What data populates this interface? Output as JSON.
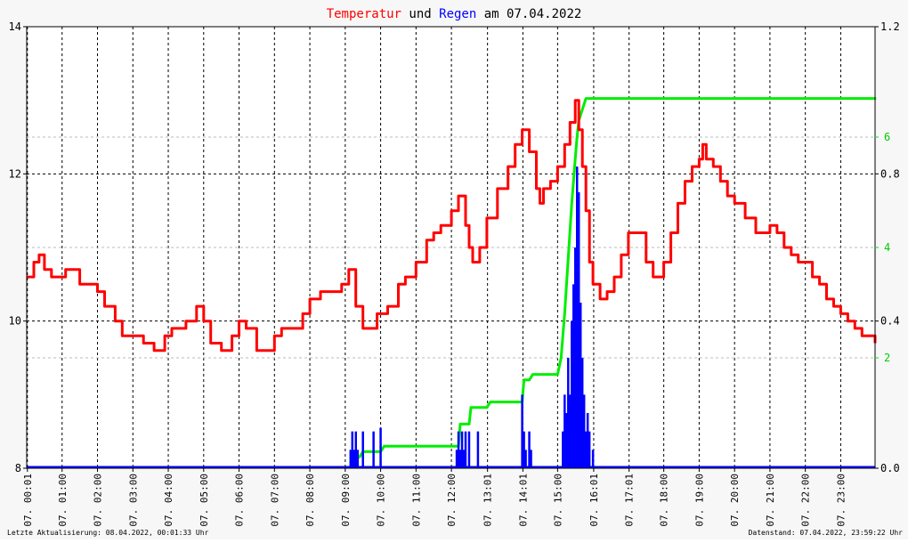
{
  "title": {
    "part1": "Temperatur",
    "part2": " und ",
    "part3": "Regen",
    "part4": " am 07.04.2022"
  },
  "colors": {
    "temp": "#ff0000",
    "rain": "#0000ff",
    "rain_sum": "#00ee00",
    "title_text": "#000000"
  },
  "footer": {
    "left": "Letzte Aktualisierung: 08.04.2022, 00:01:33 Uhr",
    "right": "Datenstand: 07.04.2022, 23:59:22 Uhr"
  },
  "chart_data": {
    "type": "line",
    "x_ticks": [
      "07. 00:01",
      "07. 01:00",
      "07. 02:00",
      "07. 03:00",
      "07. 04:00",
      "07. 05:00",
      "07. 06:00",
      "07. 07:00",
      "07. 08:00",
      "07. 09:00",
      "07. 10:00",
      "07. 11:00",
      "07. 12:00",
      "07. 13:01",
      "07. 14:01",
      "07. 15:00",
      "07. 16:01",
      "07. 17:01",
      "07. 18:00",
      "07. 19:00",
      "07. 20:00",
      "07. 21:00",
      "07. 22:00",
      "07. 23:00"
    ],
    "x_tick_hours": [
      0.02,
      1,
      2,
      3,
      4,
      5,
      6,
      7,
      8,
      9,
      10,
      11,
      12,
      13.02,
      14.02,
      15,
      16.02,
      17.02,
      18,
      19,
      20,
      21,
      22,
      23
    ],
    "xlim": [
      0,
      23.97
    ],
    "y_left": {
      "lim": [
        8,
        14
      ],
      "ticks": [
        "8",
        "10",
        "12",
        "14"
      ]
    },
    "y_right_rain": {
      "lim": [
        0,
        1.2
      ],
      "ticks": [
        "0.0",
        "0.4",
        "0.8",
        "1.2"
      ]
    },
    "y_right_sum": {
      "lim": [
        0,
        8
      ],
      "ticks": [
        "2",
        "4",
        "6"
      ]
    },
    "series": [
      {
        "name": "Temperatur",
        "axis": "left",
        "x": [
          0,
          0.2,
          0.35,
          0.5,
          0.7,
          0.9,
          1.0,
          1.1,
          1.3,
          1.5,
          1.6,
          1.8,
          2.0,
          2.2,
          2.5,
          2.7,
          3.0,
          3.3,
          3.6,
          3.9,
          4.1,
          4.3,
          4.5,
          4.8,
          5.0,
          5.2,
          5.5,
          5.8,
          6.0,
          6.2,
          6.5,
          6.7,
          7.0,
          7.2,
          7.5,
          7.8,
          8.0,
          8.3,
          8.6,
          8.9,
          9.1,
          9.3,
          9.5,
          9.7,
          9.9,
          10.2,
          10.5,
          10.7,
          11.0,
          11.3,
          11.5,
          11.7,
          12.0,
          12.2,
          12.4,
          12.5,
          12.6,
          12.8,
          13.0,
          13.3,
          13.6,
          13.8,
          14.0,
          14.2,
          14.4,
          14.5,
          14.6,
          14.8,
          15.0,
          15.2,
          15.35,
          15.5,
          15.6,
          15.7,
          15.8,
          15.9,
          16.0,
          16.2,
          16.4,
          16.6,
          16.8,
          17.0,
          17.2,
          17.5,
          17.7,
          18.0,
          18.2,
          18.4,
          18.6,
          18.8,
          19.0,
          19.1,
          19.2,
          19.4,
          19.6,
          19.8,
          20.0,
          20.3,
          20.6,
          20.8,
          21.0,
          21.2,
          21.4,
          21.6,
          21.8,
          22.0,
          22.2,
          22.4,
          22.6,
          22.8,
          23.0,
          23.2,
          23.4,
          23.6,
          23.8,
          23.97
        ],
        "values": [
          10.6,
          10.8,
          10.9,
          10.7,
          10.6,
          10.6,
          10.6,
          10.7,
          10.7,
          10.5,
          10.5,
          10.5,
          10.4,
          10.2,
          10.0,
          9.8,
          9.8,
          9.7,
          9.6,
          9.8,
          9.9,
          9.9,
          10.0,
          10.2,
          10.0,
          9.7,
          9.6,
          9.8,
          10.0,
          9.9,
          9.6,
          9.6,
          9.8,
          9.9,
          9.9,
          10.1,
          10.3,
          10.4,
          10.4,
          10.5,
          10.7,
          10.2,
          9.9,
          9.9,
          10.1,
          10.2,
          10.5,
          10.6,
          10.8,
          11.1,
          11.2,
          11.3,
          11.5,
          11.7,
          11.3,
          11.0,
          10.8,
          11.0,
          11.4,
          11.8,
          12.1,
          12.4,
          12.6,
          12.3,
          11.8,
          11.6,
          11.8,
          11.9,
          12.1,
          12.4,
          12.7,
          13.0,
          12.6,
          12.1,
          11.5,
          10.8,
          10.5,
          10.3,
          10.4,
          10.6,
          10.9,
          11.2,
          11.2,
          10.8,
          10.6,
          10.8,
          11.2,
          11.6,
          11.9,
          12.1,
          12.2,
          12.4,
          12.2,
          12.1,
          11.9,
          11.7,
          11.6,
          11.4,
          11.2,
          11.2,
          11.3,
          11.2,
          11.0,
          10.9,
          10.8,
          10.8,
          10.6,
          10.5,
          10.3,
          10.2,
          10.1,
          10.0,
          9.9,
          9.8,
          9.8,
          9.7
        ]
      },
      {
        "name": "Regen",
        "axis": "right_rain",
        "x": [
          9.15,
          9.2,
          9.25,
          9.3,
          9.35,
          9.5,
          9.8,
          10.0,
          12.15,
          12.2,
          12.25,
          12.3,
          12.35,
          12.4,
          12.5,
          12.75,
          14.0,
          14.05,
          14.1,
          14.2,
          14.25,
          15.15,
          15.2,
          15.25,
          15.3,
          15.35,
          15.4,
          15.45,
          15.5,
          15.55,
          15.6,
          15.65,
          15.7,
          15.75,
          15.8,
          15.85,
          15.9,
          16.0
        ],
        "values": [
          0.05,
          0.1,
          0.05,
          0.1,
          0.05,
          0.1,
          0.1,
          0.11,
          0.05,
          0.1,
          0.05,
          0.1,
          0.05,
          0.1,
          0.1,
          0.1,
          0.2,
          0.1,
          0.05,
          0.1,
          0.05,
          0.1,
          0.2,
          0.15,
          0.3,
          0.2,
          0.4,
          0.5,
          0.6,
          0.82,
          0.75,
          0.45,
          0.3,
          0.2,
          0.1,
          0.15,
          0.1,
          0.05
        ]
      },
      {
        "name": "Regensumme",
        "axis": "right_sum",
        "x": [
          9.2,
          9.4,
          9.5,
          10.0,
          10.1,
          11.0,
          12.0,
          12.2,
          12.25,
          12.5,
          12.55,
          13.0,
          13.1,
          13.5,
          14.0,
          14.05,
          14.2,
          14.3,
          14.5,
          15.0,
          15.1,
          15.2,
          15.3,
          15.4,
          15.5,
          15.55,
          15.6,
          15.7,
          15.8,
          15.9,
          24.0
        ],
        "values": [
          0.2,
          0.2,
          0.3,
          0.3,
          0.4,
          0.4,
          0.4,
          0.4,
          0.8,
          0.8,
          1.1,
          1.1,
          1.2,
          1.2,
          1.2,
          1.6,
          1.6,
          1.7,
          1.7,
          1.7,
          2.0,
          2.8,
          3.8,
          4.8,
          5.6,
          6.0,
          6.3,
          6.5,
          6.7,
          6.7,
          6.7
        ]
      }
    ],
    "grid": true
  }
}
